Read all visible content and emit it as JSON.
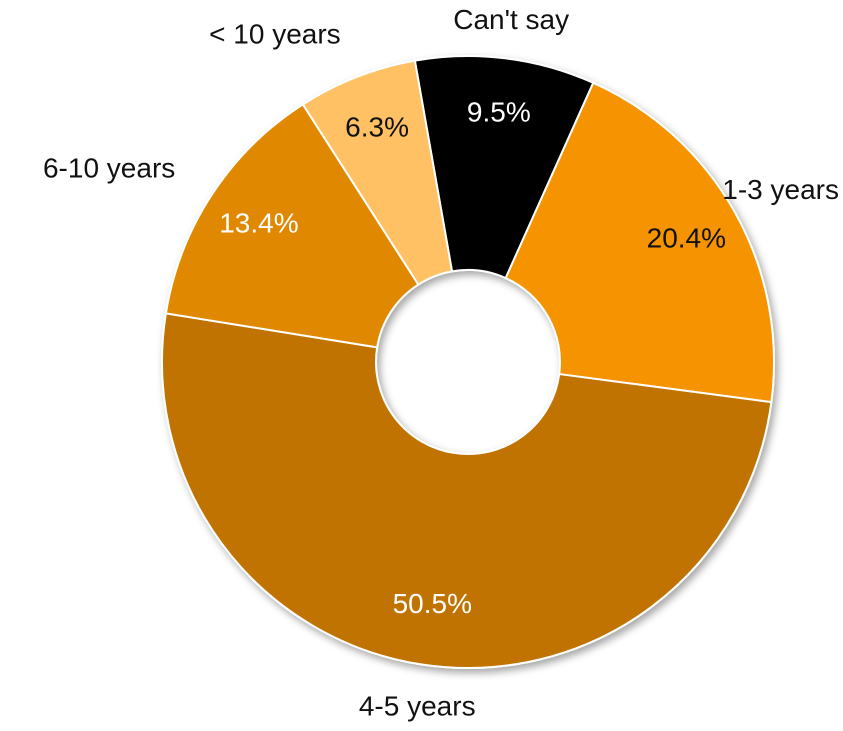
{
  "chart_data": {
    "type": "pie",
    "style": "donut",
    "start_angle_deg": -10,
    "direction": "clockwise",
    "slices": [
      {
        "category": "Can't say",
        "value": 9.5,
        "label": "9.5%",
        "color": "#000000",
        "label_color": "#ffffff"
      },
      {
        "category": "1-3 years",
        "value": 20.4,
        "label": "20.4%",
        "color": "#F59300",
        "label_color": "#111111"
      },
      {
        "category": "4-5 years",
        "value": 50.5,
        "label": "50.5%",
        "color": "#C07300",
        "label_color": "#ffffff"
      },
      {
        "category": "6-10 years",
        "value": 13.4,
        "label": "13.4%",
        "color": "#E08800",
        "label_color": "#ffffff"
      },
      {
        "category": "< 10 years",
        "value": 6.3,
        "label": "6.3%",
        "color": "#FFC164",
        "label_color": "#111111"
      }
    ]
  }
}
